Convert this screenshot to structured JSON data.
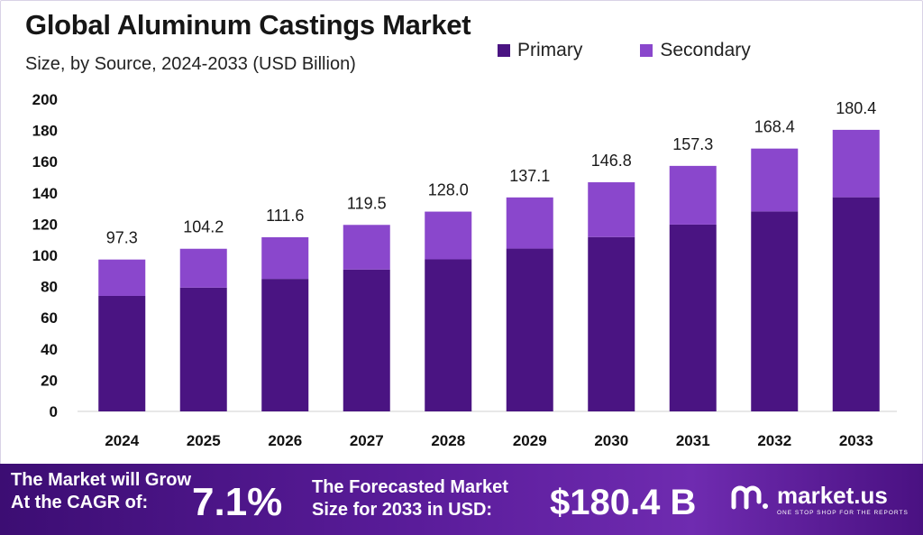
{
  "header": {
    "title": "Global Aluminum Castings Market",
    "subtitle": "Size, by Source, 2024-2033 (USD Billion)"
  },
  "legend": [
    {
      "label": "Primary",
      "color": "#4a1482"
    },
    {
      "label": "Secondary",
      "color": "#8a47cc"
    }
  ],
  "chart_data": {
    "type": "bar",
    "stacked": true,
    "categories": [
      "2024",
      "2025",
      "2026",
      "2027",
      "2028",
      "2029",
      "2030",
      "2031",
      "2032",
      "2033"
    ],
    "series": [
      {
        "name": "Primary",
        "color": "#4a1482",
        "values": [
          74.0,
          79.3,
          84.9,
          90.9,
          97.4,
          104.3,
          111.7,
          119.7,
          128.1,
          137.2
        ]
      },
      {
        "name": "Secondary",
        "color": "#8a47cc",
        "values": [
          23.3,
          24.9,
          26.7,
          28.6,
          30.6,
          32.8,
          35.1,
          37.6,
          40.3,
          43.2
        ]
      }
    ],
    "totals": [
      "97.3",
      "104.2",
      "111.6",
      "119.5",
      "128.0",
      "137.1",
      "146.8",
      "157.3",
      "168.4",
      "180.4"
    ],
    "ylim": [
      0,
      200
    ],
    "yticks": [
      "0",
      "20",
      "40",
      "60",
      "80",
      "100",
      "120",
      "140",
      "160",
      "180",
      "200"
    ],
    "grid": false,
    "legend_position": "top-right"
  },
  "footer": {
    "cagr_label_line1": "The Market will Grow",
    "cagr_label_line2": "At the CAGR of:",
    "cagr_value": "7.1%",
    "forecast_label_line1": "The Forecasted Market",
    "forecast_label_line2": "Size for 2033 in USD:",
    "forecast_value": "$180.4 B",
    "brand_name": "market.us",
    "brand_tagline": "ONE STOP SHOP FOR THE REPORTS"
  }
}
